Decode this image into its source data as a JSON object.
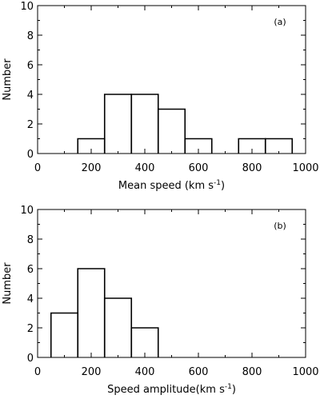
{
  "chart_data": [
    {
      "type": "histogram",
      "panel_label": "(a)",
      "xlabel": "Mean speed (km s",
      "xlabel_sup": "-1",
      "xlabel_tail": ")",
      "ylabel": "Number",
      "xlim": [
        0,
        1000
      ],
      "ylim": [
        0,
        10
      ],
      "xticks": [
        0,
        200,
        400,
        600,
        800,
        1000
      ],
      "yticks": [
        0,
        2,
        4,
        6,
        8,
        10
      ],
      "bins": [
        {
          "x0": 150,
          "x1": 250,
          "count": 1
        },
        {
          "x0": 250,
          "x1": 350,
          "count": 4
        },
        {
          "x0": 350,
          "x1": 450,
          "count": 4
        },
        {
          "x0": 450,
          "x1": 550,
          "count": 3
        },
        {
          "x0": 550,
          "x1": 650,
          "count": 1
        },
        {
          "x0": 650,
          "x1": 750,
          "count": 0
        },
        {
          "x0": 750,
          "x1": 850,
          "count": 1
        },
        {
          "x0": 850,
          "x1": 950,
          "count": 1
        }
      ]
    },
    {
      "type": "histogram",
      "panel_label": "(b)",
      "xlabel": "Speed amplitude(km s",
      "xlabel_sup": "-1",
      "xlabel_tail": ")",
      "ylabel": "Number",
      "xlim": [
        0,
        1000
      ],
      "ylim": [
        0,
        10
      ],
      "xticks": [
        0,
        200,
        400,
        600,
        800,
        1000
      ],
      "yticks": [
        0,
        2,
        4,
        6,
        8,
        10
      ],
      "bins": [
        {
          "x0": 50,
          "x1": 150,
          "count": 3
        },
        {
          "x0": 150,
          "x1": 250,
          "count": 6
        },
        {
          "x0": 250,
          "x1": 350,
          "count": 4
        },
        {
          "x0": 350,
          "x1": 450,
          "count": 2
        }
      ]
    }
  ]
}
